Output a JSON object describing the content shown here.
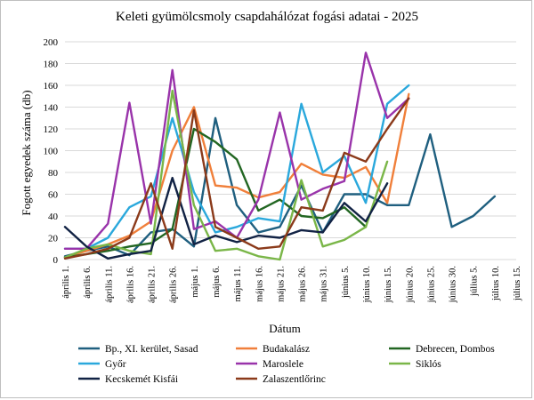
{
  "chart_data": {
    "type": "line",
    "title": "Keleti gyümölcsmoly csapdahálózat fogási adatai - 2025",
    "xlabel": "Dátum",
    "ylabel": "Fogott egyedek száma (db)",
    "ylim": [
      0,
      200
    ],
    "yticks": [
      0,
      20,
      40,
      60,
      80,
      100,
      120,
      140,
      160,
      180,
      200
    ],
    "grid": "horizontal",
    "legend_position": "bottom",
    "categories": [
      "április 1.",
      "április 6.",
      "április 11.",
      "április 16.",
      "április 21.",
      "április 26.",
      "május 1.",
      "május 6.",
      "május 11.",
      "május 16.",
      "május 21.",
      "május 26.",
      "május 31.",
      "június 5.",
      "június 10.",
      "június 15.",
      "június 20.",
      "június 25.",
      "június 30.",
      "július 5.",
      "július 10.",
      "július 15."
    ],
    "series": [
      {
        "name": "Bp., XI. kerület, Sasad",
        "color": "#1f5f7f",
        "values": [
          3,
          8,
          12,
          4,
          25,
          28,
          12,
          130,
          50,
          25,
          30,
          68,
          25,
          60,
          60,
          50,
          50,
          115,
          30,
          40,
          58,
          null
        ]
      },
      {
        "name": "Budakalász",
        "color": "#f07f3a",
        "values": [
          2,
          8,
          14,
          22,
          35,
          100,
          140,
          68,
          66,
          57,
          62,
          88,
          78,
          75,
          85,
          52,
          152,
          null,
          null,
          null,
          null,
          null
        ]
      },
      {
        "name": "Debrecen, Dombos",
        "color": "#226622",
        "values": [
          2,
          5,
          8,
          12,
          15,
          28,
          120,
          108,
          92,
          45,
          55,
          40,
          38,
          48,
          30,
          null,
          null,
          null,
          null,
          null,
          null,
          null
        ]
      },
      {
        "name": "Győr",
        "color": "#2aa8dc",
        "values": [
          10,
          10,
          20,
          48,
          58,
          130,
          62,
          25,
          30,
          38,
          35,
          143,
          80,
          95,
          52,
          143,
          160,
          null,
          null,
          null,
          null,
          null
        ]
      },
      {
        "name": "Maroslele",
        "color": "#9933aa",
        "values": [
          10,
          10,
          33,
          144,
          33,
          174,
          28,
          35,
          20,
          55,
          135,
          55,
          65,
          72,
          190,
          130,
          148,
          null,
          null,
          null,
          null,
          null
        ]
      },
      {
        "name": "Siklós",
        "color": "#7ab648",
        "values": [
          2,
          10,
          14,
          8,
          5,
          155,
          50,
          8,
          10,
          3,
          0,
          73,
          12,
          18,
          30,
          90,
          null,
          null,
          null,
          null,
          null,
          null
        ]
      },
      {
        "name": "Kecskemét Kisfái",
        "color": "#112244",
        "values": [
          30,
          12,
          1,
          5,
          8,
          75,
          14,
          22,
          16,
          22,
          20,
          27,
          25,
          52,
          35,
          70,
          null,
          null,
          null,
          null,
          null,
          null
        ]
      },
      {
        "name": "Zalaszentlőrinc",
        "color": "#8b3a1a",
        "values": [
          1,
          5,
          10,
          20,
          70,
          10,
          137,
          30,
          20,
          10,
          12,
          48,
          45,
          98,
          90,
          120,
          148,
          null,
          null,
          null,
          null,
          null
        ]
      }
    ]
  }
}
